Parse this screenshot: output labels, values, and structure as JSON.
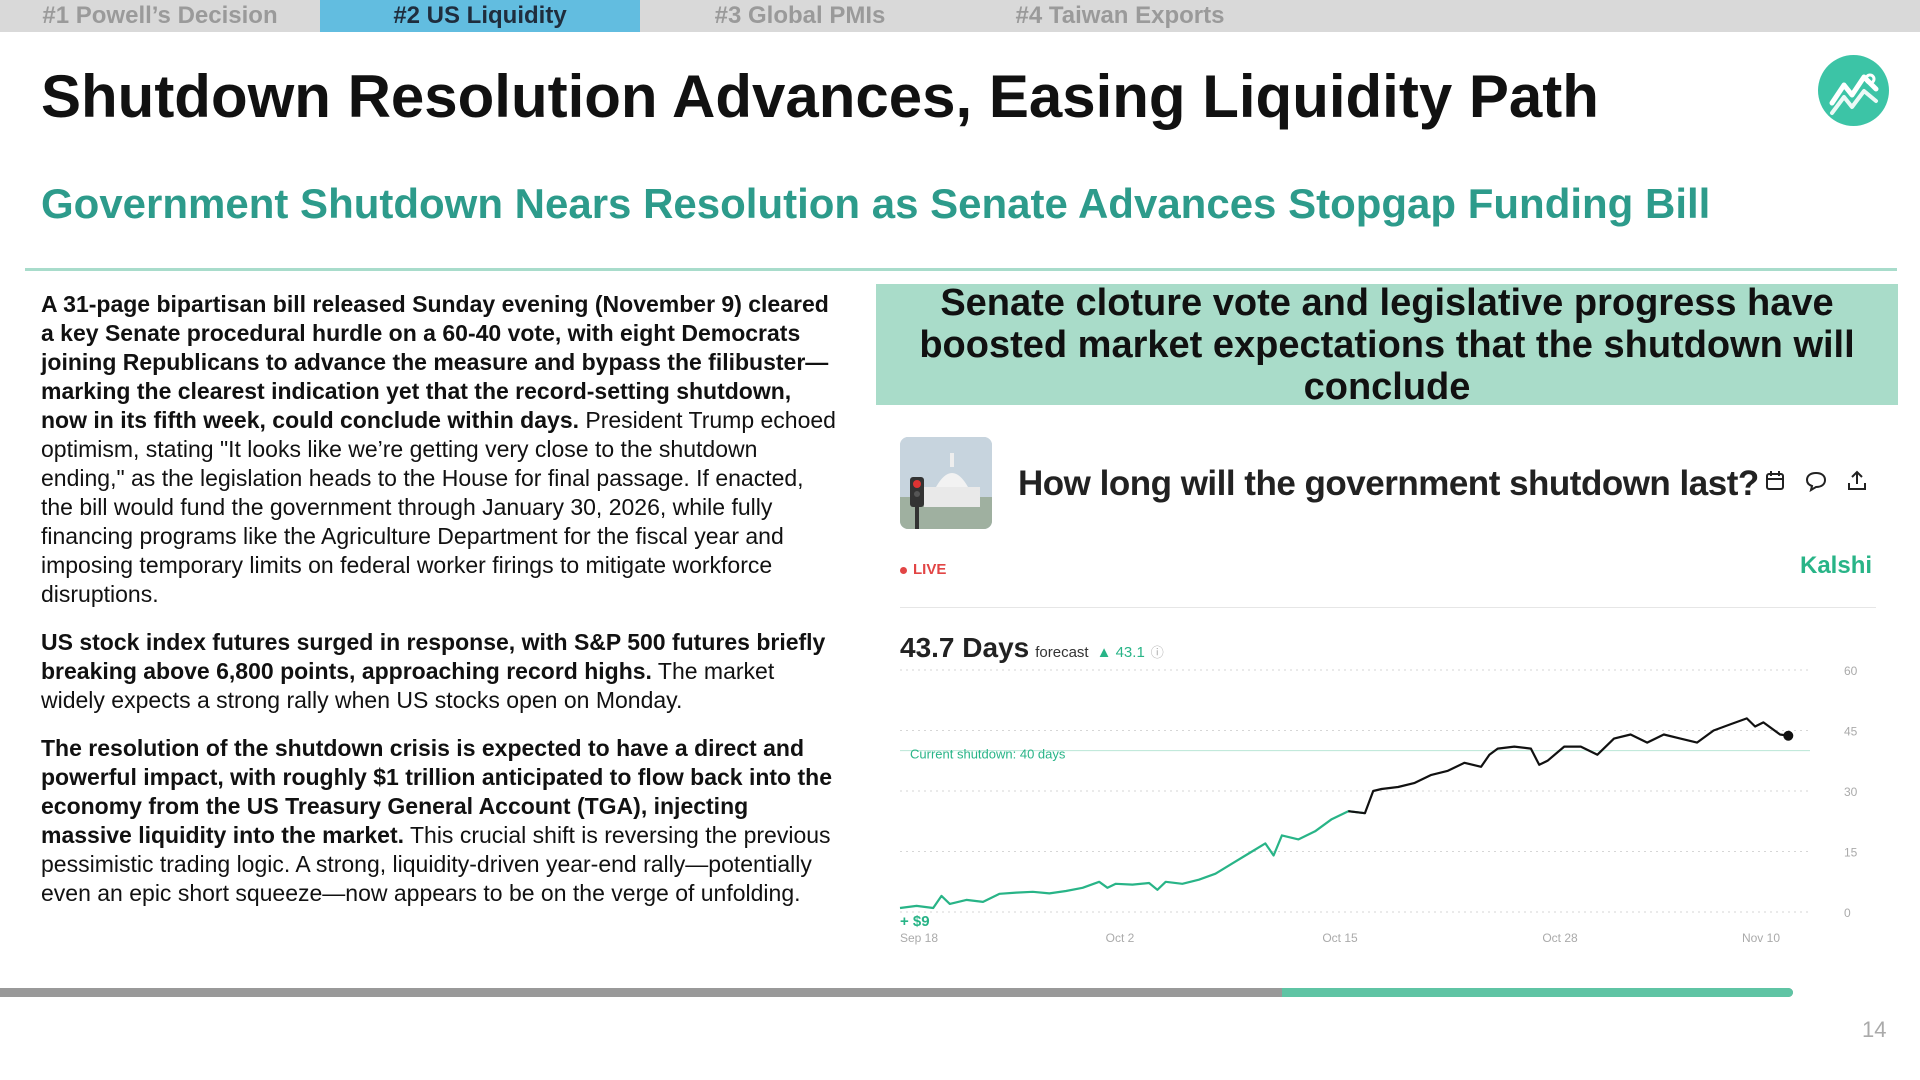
{
  "tabs": [
    {
      "label": "#1 Powell’s Decision"
    },
    {
      "label": "#2 US Liquidity"
    },
    {
      "label": "#3 Global PMIs"
    },
    {
      "label": "#4 Taiwan Exports"
    }
  ],
  "active_tab": 1,
  "title": "Shutdown Resolution Advances, Easing Liquidity Path",
  "subtitle": "Government Shutdown Nears Resolution as Senate Advances Stopgap Funding Bill",
  "paragraphs": [
    {
      "bold": "A 31-page bipartisan bill released Sunday evening (November 9) cleared a key Senate procedural hurdle on a 60-40 vote, with eight Democrats joining Republicans to advance the measure and bypass the filibuster—marking the clearest indication yet that the record-setting shutdown, now in its fifth week, could conclude within days.",
      "normal": " President Trump echoed optimism, stating \"It looks like we’re getting very close to the shutdown ending,\" as the legislation heads to the House for final passage. If enacted, the bill would fund the government through January 30, 2026, while fully financing programs like the Agriculture Department for the fiscal year and imposing temporary limits on federal worker firings to mitigate workforce disruptions."
    },
    {
      "bold": "US stock index futures surged in response, with S&P 500 futures briefly breaking above 6,800 points, approaching record highs.",
      "normal": " The market widely expects a strong rally when US stocks open on Monday."
    },
    {
      "bold": "The resolution of the shutdown crisis is expected to have a direct and powerful impact, with roughly $1 trillion anticipated to flow back into the economy from the US Treasury General Account (TGA), injecting massive liquidity into the market.",
      "normal": " This crucial shift is reversing the previous pessimistic trading logic. A strong, liquidity-driven year-end rally—potentially even an epic short squeeze—now appears to be on the verge of unfolding."
    }
  ],
  "callout": "Senate cloture vote and legislative progress have boosted market expectations that the shutdown will conclude",
  "market": {
    "question": "How long will the government shutdown last?",
    "live_label": "LIVE",
    "brand": "Kalshi",
    "value": "43.7 Days",
    "value_caption": "forecast",
    "delta": "43.1",
    "icons": [
      "calendar-icon",
      "comment-icon",
      "share-icon",
      "info-icon"
    ]
  },
  "chart_data": {
    "type": "line",
    "title": "",
    "xlabel": "",
    "ylabel": "",
    "x_tick_labels": [
      "Sep 18",
      "Oct 2",
      "Oct 15",
      "Oct 28",
      "Nov 10"
    ],
    "y_ticks": [
      0,
      15,
      30,
      45,
      60
    ],
    "ylim": [
      0,
      60
    ],
    "x_range_days": [
      0,
      53
    ],
    "grid": true,
    "reference_line": {
      "value": 40,
      "label": "Current shutdown: 40 days"
    },
    "corner_label": "+ $9",
    "series": [
      {
        "color_before": "#28b487",
        "color_after": "#111111",
        "color_switch_day": 28,
        "points": [
          [
            0,
            1
          ],
          [
            1,
            1.5
          ],
          [
            2,
            1
          ],
          [
            2.5,
            4
          ],
          [
            3,
            2
          ],
          [
            4,
            3
          ],
          [
            5,
            2.5
          ],
          [
            6,
            4.5
          ],
          [
            7,
            4.8
          ],
          [
            8,
            5
          ],
          [
            9,
            4.6
          ],
          [
            10,
            5.2
          ],
          [
            11,
            6
          ],
          [
            12,
            7.5
          ],
          [
            12.5,
            6
          ],
          [
            13,
            7
          ],
          [
            14,
            6.8
          ],
          [
            15,
            7.2
          ],
          [
            15.5,
            5.5
          ],
          [
            16,
            7.5
          ],
          [
            17,
            7
          ],
          [
            18,
            8
          ],
          [
            19,
            9.5
          ],
          [
            20,
            12
          ],
          [
            21,
            14.5
          ],
          [
            22,
            17
          ],
          [
            22.5,
            14
          ],
          [
            23,
            19
          ],
          [
            24,
            18
          ],
          [
            25,
            20
          ],
          [
            26,
            23
          ],
          [
            27,
            25
          ],
          [
            28,
            24.5
          ],
          [
            28.5,
            30
          ],
          [
            29,
            30.5
          ],
          [
            30,
            31
          ],
          [
            31,
            32
          ],
          [
            32,
            34
          ],
          [
            33,
            35
          ],
          [
            34,
            37
          ],
          [
            35,
            36
          ],
          [
            35.5,
            39
          ],
          [
            36,
            40.5
          ],
          [
            37,
            41
          ],
          [
            38,
            40.5
          ],
          [
            38.5,
            36.5
          ],
          [
            39,
            37.5
          ],
          [
            40,
            41
          ],
          [
            41,
            41
          ],
          [
            42,
            39
          ],
          [
            43,
            43
          ],
          [
            44,
            44
          ],
          [
            45,
            42
          ],
          [
            46,
            44
          ],
          [
            47,
            43
          ],
          [
            48,
            42
          ],
          [
            49,
            45
          ],
          [
            50,
            46.5
          ],
          [
            51,
            48
          ],
          [
            51.5,
            46
          ],
          [
            52,
            47
          ],
          [
            53,
            44
          ],
          [
            53.5,
            43.7
          ]
        ]
      }
    ]
  },
  "page_number": "14",
  "progress_fraction": 0.715
}
